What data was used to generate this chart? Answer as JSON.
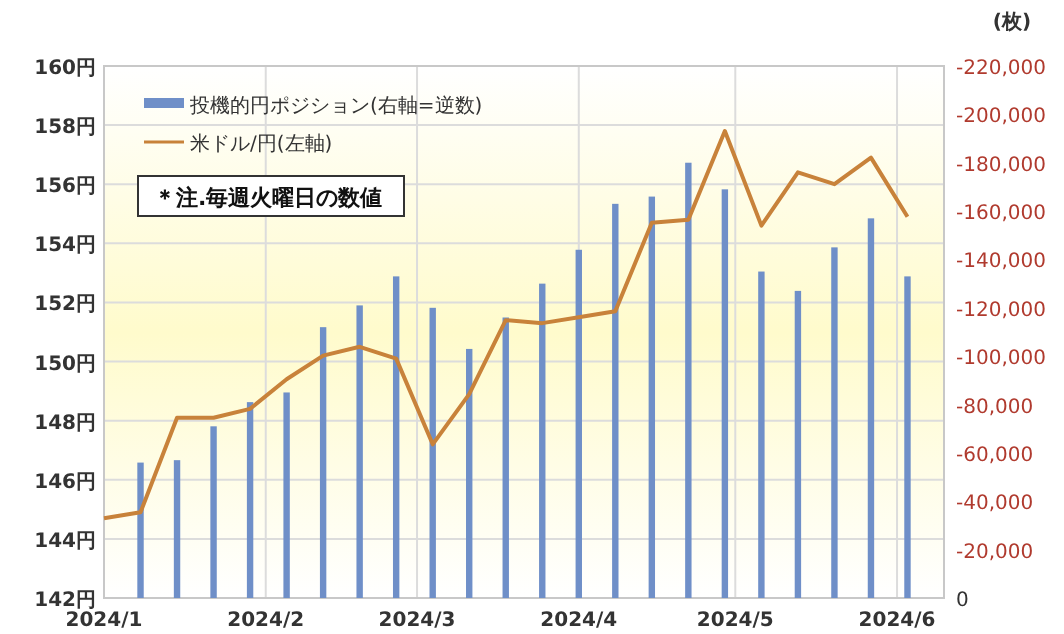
{
  "chart_data": {
    "type": "line",
    "legend": "top left",
    "grid": true,
    "y2label": "(枚)",
    "annotations": [
      "＊注.毎週火曜日の数値"
    ],
    "xlim": [
      "2024-01-02",
      "2024-06-11"
    ],
    "xticks": [
      {
        "value": "2024-01-02",
        "label": "2024/1"
      },
      {
        "value": "2024-02-02",
        "label": "2024/2"
      },
      {
        "value": "2024-03-02",
        "label": "2024/3"
      },
      {
        "value": "2024-04-02",
        "label": "2024/4"
      },
      {
        "value": "2024-05-02",
        "label": "2024/5"
      },
      {
        "value": "2024-06-02",
        "label": "2024/6"
      }
    ],
    "ylim": [
      142,
      160
    ],
    "yticks": [
      {
        "value": 142,
        "label": "142円"
      },
      {
        "value": 144,
        "label": "144円"
      },
      {
        "value": 146,
        "label": "146円"
      },
      {
        "value": 148,
        "label": "148円"
      },
      {
        "value": 150,
        "label": "150円"
      },
      {
        "value": 152,
        "label": "152円"
      },
      {
        "value": 154,
        "label": "154円"
      },
      {
        "value": 156,
        "label": "156円"
      },
      {
        "value": 158,
        "label": "158円"
      },
      {
        "value": 160,
        "label": "160円"
      }
    ],
    "y2lim": [
      0,
      -220000
    ],
    "y2ticks": [
      0,
      {
        "value": -20000,
        "label": "-20,000"
      },
      {
        "value": -40000,
        "label": "-40,000"
      },
      {
        "value": -60000,
        "label": "-60,000"
      },
      {
        "value": -80000,
        "label": "-80,000"
      },
      {
        "value": -100000,
        "label": "-100,000"
      },
      {
        "value": -120000,
        "label": "-120,000"
      },
      {
        "value": -140000,
        "label": "-140,000"
      },
      {
        "value": -160000,
        "label": "-160,000"
      },
      {
        "value": -180000,
        "label": "-180,000"
      },
      {
        "value": -200000,
        "label": "-200,000"
      },
      {
        "value": -220000,
        "label": "-220,000"
      }
    ],
    "series": [
      {
        "name": "投機的円ポジション(右軸=逆数)",
        "type": "bar",
        "axis": "y2",
        "color": "#6f8fc8",
        "x": [
          "2024-01-09",
          "2024-01-16",
          "2024-01-23",
          "2024-01-30",
          "2024-02-06",
          "2024-02-13",
          "2024-02-20",
          "2024-02-27",
          "2024-03-05",
          "2024-03-12",
          "2024-03-19",
          "2024-03-26",
          "2024-04-02",
          "2024-04-09",
          "2024-04-16",
          "2024-04-23",
          "2024-04-30",
          "2024-05-07",
          "2024-05-14",
          "2024-05-21",
          "2024-05-28",
          "2024-06-04"
        ],
        "values": [
          -56000,
          -57000,
          -71000,
          -81000,
          -85000,
          -112000,
          -121000,
          -133000,
          -120000,
          -103000,
          -116000,
          -130000,
          -144000,
          -163000,
          -166000,
          -180000,
          -169000,
          -135000,
          -127000,
          -145000,
          -157000,
          -133000
        ]
      },
      {
        "name": "米ドル/円(左軸)",
        "color": "#c8823a",
        "x": [
          "2024-01-02",
          "2024-01-09",
          "2024-01-16",
          "2024-01-23",
          "2024-01-30",
          "2024-02-06",
          "2024-02-13",
          "2024-02-20",
          "2024-02-27",
          "2024-03-05",
          "2024-03-12",
          "2024-03-19",
          "2024-03-26",
          "2024-04-02",
          "2024-04-09",
          "2024-04-16",
          "2024-04-23",
          "2024-04-30",
          "2024-05-07",
          "2024-05-14",
          "2024-05-21",
          "2024-05-28",
          "2024-06-04"
        ],
        "values": [
          144.7,
          144.9,
          148.1,
          148.1,
          148.4,
          149.4,
          150.2,
          150.5,
          150.1,
          147.2,
          148.9,
          151.4,
          151.3,
          151.5,
          151.7,
          154.7,
          154.8,
          157.8,
          154.6,
          156.4,
          156.0,
          156.9,
          154.9
        ]
      }
    ]
  }
}
